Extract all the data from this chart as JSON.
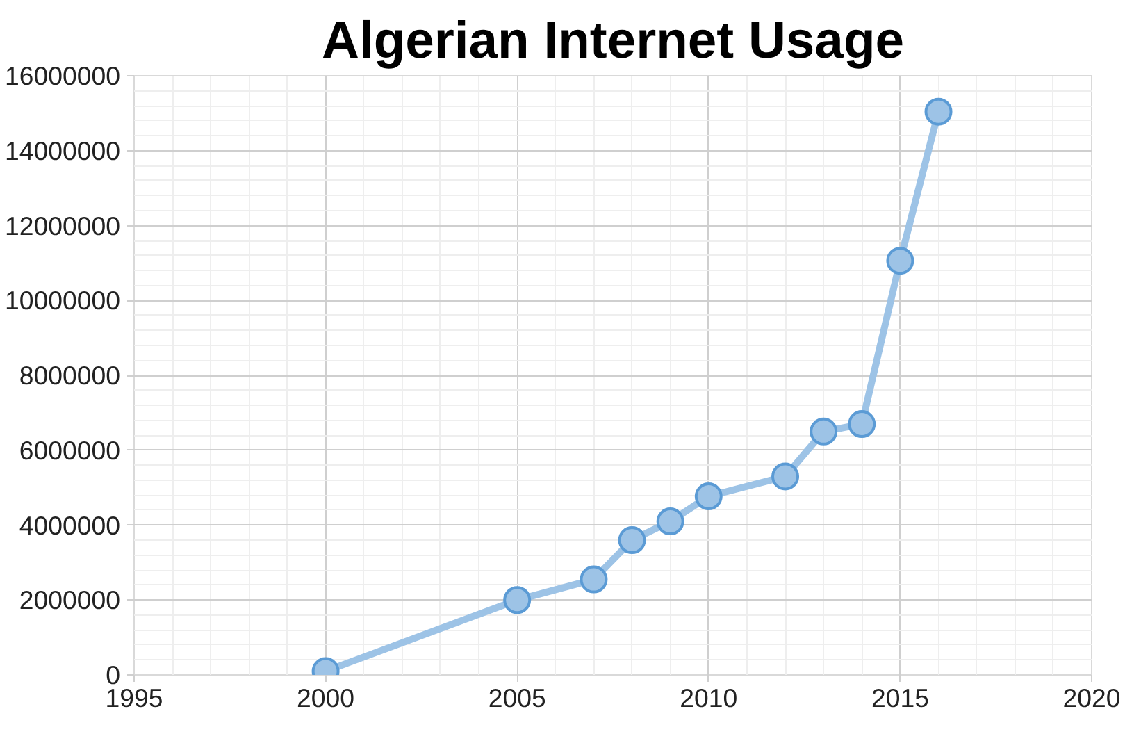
{
  "chart_data": {
    "type": "line",
    "title": "Algerian Internet Usage",
    "x": [
      2000,
      2005,
      2007,
      2008,
      2009,
      2010,
      2012,
      2013,
      2014,
      2015,
      2016
    ],
    "series": [
      {
        "color": "#9dc3e6",
        "values": [
          100000,
          2000000,
          2550000,
          3600000,
          4100000,
          4770000,
          5300000,
          6500000,
          6700000,
          11060000,
          15040000
        ]
      }
    ],
    "xlim": [
      1995,
      2020
    ],
    "xticks": [
      1995,
      2000,
      2005,
      2010,
      2015,
      2020
    ],
    "ylim": [
      0,
      16000000
    ],
    "yticks": [
      0,
      2000000,
      4000000,
      6000000,
      8000000,
      10000000,
      12000000,
      14000000,
      16000000
    ],
    "grid": true,
    "marker": "circle",
    "line_style": "solid"
  }
}
